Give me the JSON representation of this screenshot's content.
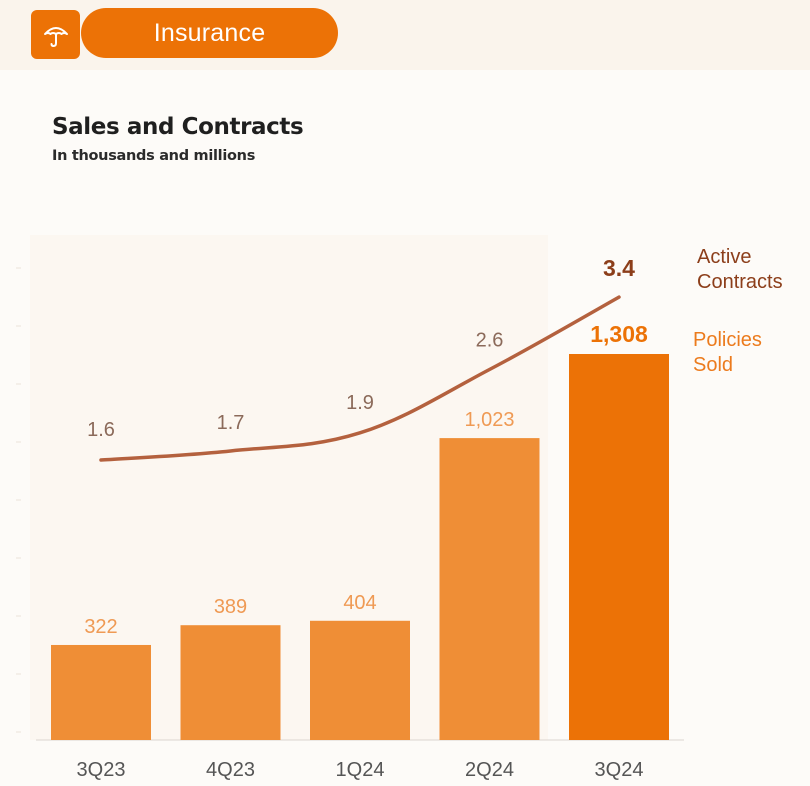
{
  "header": {
    "section_label": "Insurance",
    "icon": "umbrella-icon",
    "accent_color": "#ec7206",
    "background_color": "#faf4ec"
  },
  "chart_data": {
    "type": "bar",
    "title": "Sales and Contracts",
    "subtitle": "In thousands and millions",
    "categories": [
      "3Q23",
      "4Q23",
      "1Q24",
      "2Q24",
      "3Q24"
    ],
    "series": [
      {
        "name": "Policies Sold",
        "type": "bar",
        "values": [
          322,
          389,
          404,
          1023,
          1308
        ],
        "value_labels": [
          "322",
          "389",
          "404",
          "1,023",
          "1,308"
        ],
        "color": "#ef8e36",
        "highlight_color": "#ec7206",
        "label_color": "#ef9a54"
      },
      {
        "name": "Active Contracts",
        "type": "line",
        "values": [
          1.6,
          1.7,
          1.9,
          2.6,
          3.4
        ],
        "value_labels": [
          "1.6",
          "1.7",
          "1.9",
          "2.6",
          "3.4"
        ],
        "color": "#b4613e",
        "label_color": "#8b6a5a",
        "highlight_color": "#8c3e1a"
      }
    ],
    "legend": [
      {
        "lines": [
          "Active",
          "Contracts"
        ],
        "series": "Active Contracts"
      },
      {
        "lines": [
          "Policies",
          "Sold"
        ],
        "series": "Policies Sold"
      }
    ],
    "highlight_index": 4,
    "legend_position": "right",
    "grid": false
  }
}
